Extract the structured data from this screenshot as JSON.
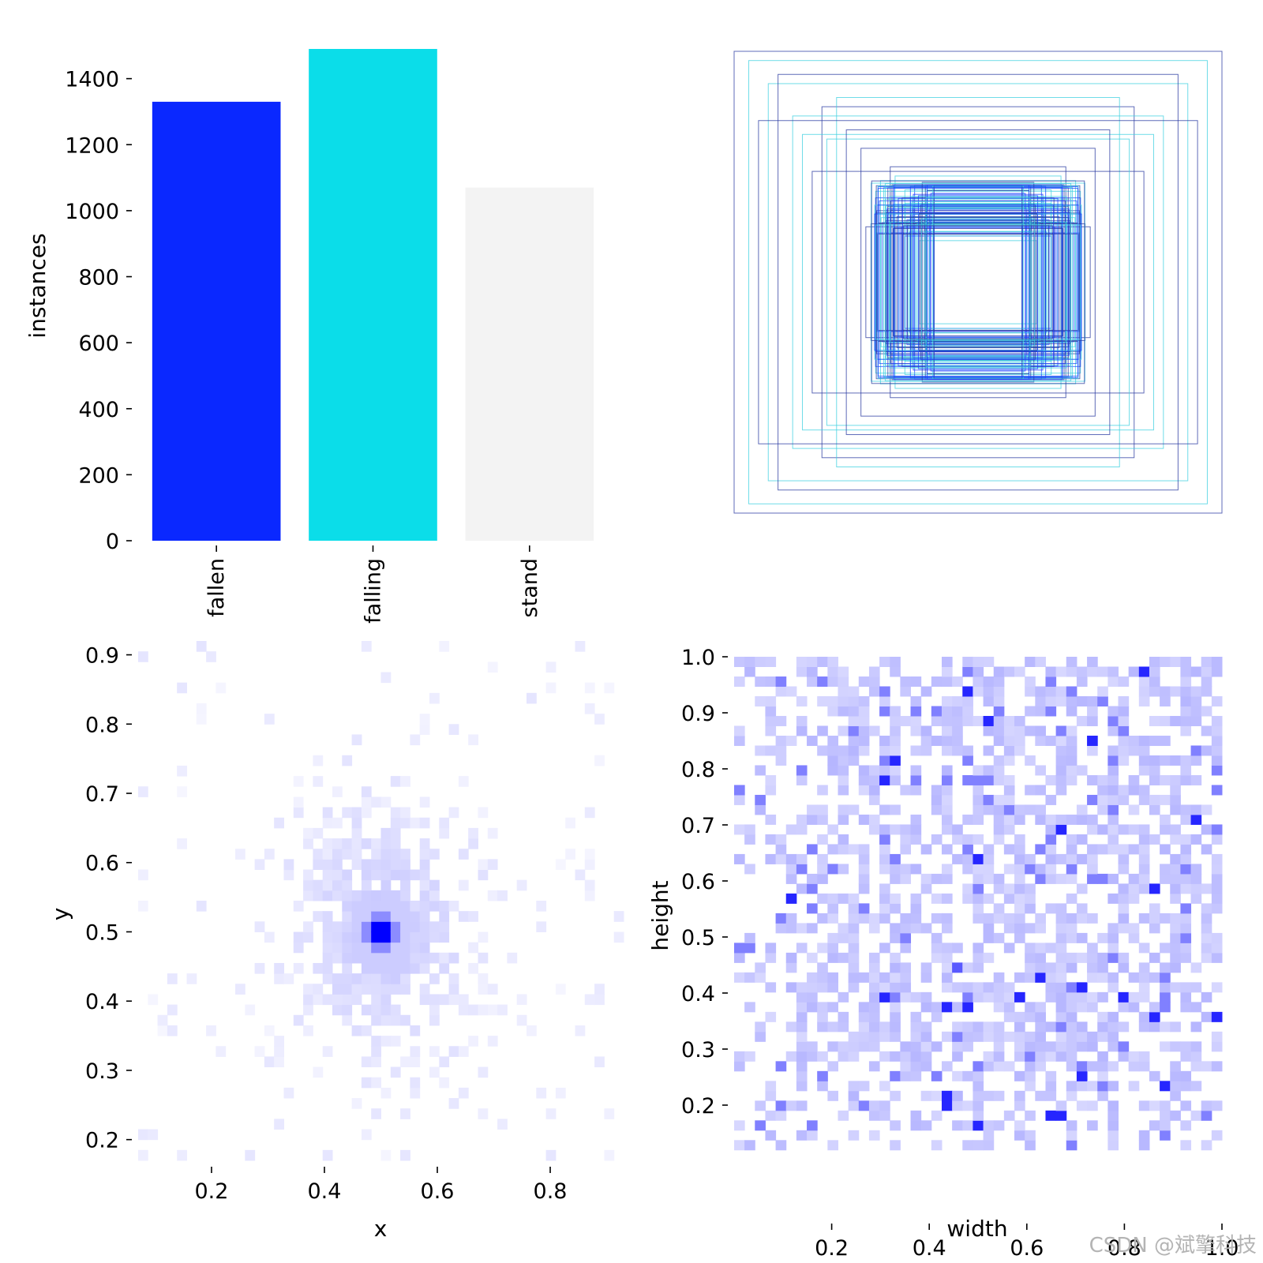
{
  "watermark": "CSDN @斌擎科技",
  "colors": {
    "fallen": "#0a28ff",
    "falling": "#0bdde9",
    "stand": "#f3f3f3",
    "heat": "#0000ff"
  },
  "chart_data": [
    {
      "type": "bar",
      "title": "",
      "ylabel": "instances",
      "categories": [
        "fallen",
        "falling",
        "stand"
      ],
      "values": [
        1330,
        1490,
        1070
      ],
      "ylim": [
        0,
        1490
      ],
      "yticks": [
        0,
        200,
        400,
        600,
        800,
        1000,
        1200,
        1400
      ],
      "ytick_labels": [
        "0",
        "200",
        "400",
        "600",
        "800",
        "1000",
        "1200",
        "1400"
      ],
      "grid": false,
      "legend": "none"
    },
    {
      "type": "boxes",
      "title": "",
      "description_free": true,
      "rects": [
        [
          0.5,
          0.5,
          1.0,
          1.0
        ],
        [
          0.5,
          0.5,
          0.86,
          0.86
        ],
        [
          0.5,
          0.5,
          0.64,
          0.76
        ],
        [
          0.5,
          0.5,
          0.94,
          0.96
        ],
        [
          0.5,
          0.5,
          0.82,
          0.9
        ],
        [
          0.5,
          0.5,
          0.76,
          0.72
        ],
        [
          0.5,
          0.5,
          0.58,
          0.8
        ],
        [
          0.5,
          0.5,
          0.48,
          0.58
        ],
        [
          0.5,
          0.5,
          0.4,
          0.44
        ],
        [
          0.5,
          0.5,
          0.36,
          0.5
        ],
        [
          0.5,
          0.5,
          0.3,
          0.4
        ],
        [
          0.5,
          0.5,
          0.46,
          0.24
        ],
        [
          0.5,
          0.5,
          0.34,
          0.3
        ],
        [
          0.5,
          0.5,
          0.26,
          0.34
        ],
        [
          0.5,
          0.5,
          0.22,
          0.28
        ],
        [
          0.5,
          0.5,
          0.28,
          0.22
        ],
        [
          0.5,
          0.5,
          0.2,
          0.32
        ],
        [
          0.5,
          0.5,
          0.38,
          0.36
        ],
        [
          0.5,
          0.5,
          0.32,
          0.26
        ],
        [
          0.5,
          0.5,
          0.24,
          0.18
        ],
        [
          0.5,
          0.5,
          0.42,
          0.3
        ],
        [
          0.5,
          0.5,
          0.3,
          0.2
        ],
        [
          0.5,
          0.5,
          0.18,
          0.24
        ],
        [
          0.5,
          0.5,
          0.26,
          0.42
        ],
        [
          0.5,
          0.5,
          0.72,
          0.64
        ],
        [
          0.5,
          0.5,
          0.68,
          0.48
        ],
        [
          0.5,
          0.5,
          0.34,
          0.46
        ],
        [
          0.5,
          0.5,
          0.9,
          0.7
        ],
        [
          0.5,
          0.5,
          0.62,
          0.62
        ],
        [
          0.5,
          0.5,
          0.54,
          0.66
        ]
      ],
      "rect_colors": [
        "#2a3aa0",
        "#3fd0e0",
        "#2a3aa0",
        "#3fd0e0",
        "#2a3aa0",
        "#3fd0e0",
        "#3fd0e0",
        "#2a3aa0",
        "#3fd0e0",
        "#2a3aa0",
        "#3fd0e0",
        "#2a3aa0",
        "#1a40ff",
        "#3fd0e0",
        "#1a40ff",
        "#3fd0e0",
        "#1a40ff",
        "#3fd0e0",
        "#1a40ff",
        "#3fd0e0",
        "#2a3aa0",
        "#1a40ff",
        "#3fd0e0",
        "#1a40ff",
        "#3fd0e0",
        "#2a3aa0",
        "#3fd0e0",
        "#2a3aa0",
        "#3fd0e0",
        "#2a3aa0"
      ]
    },
    {
      "type": "heatmap",
      "title": "",
      "xlabel": "x",
      "ylabel": "y",
      "xlim": [
        0.07,
        0.93
      ],
      "ylim": [
        0.17,
        0.92
      ],
      "xticks": [
        0.2,
        0.4,
        0.6,
        0.8
      ],
      "xtick_labels": [
        "0.2",
        "0.4",
        "0.6",
        "0.8"
      ],
      "yticks": [
        0.2,
        0.3,
        0.4,
        0.5,
        0.6,
        0.7,
        0.8,
        0.9
      ],
      "ytick_labels": [
        "0.2",
        "0.3",
        "0.4",
        "0.5",
        "0.6",
        "0.7",
        "0.8",
        "0.9"
      ],
      "bins": [
        50,
        50
      ],
      "peak": {
        "x": 0.5,
        "y": 0.5,
        "intensity": 1.0
      },
      "spread": {
        "x": 0.14,
        "y": 0.15
      },
      "base_intensity": 0.07,
      "seed": 11
    },
    {
      "type": "heatmap",
      "title": "",
      "xlabel": "width",
      "ylabel": "height",
      "xlim": [
        0.0,
        1.0
      ],
      "ylim": [
        0.0,
        1.0
      ],
      "xticks": [
        0.2,
        0.4,
        0.6,
        0.8,
        1.0
      ],
      "xtick_labels": [
        "0.2",
        "0.4",
        "0.6",
        "0.8",
        "1.0"
      ],
      "yticks": [
        0.2,
        0.3,
        0.4,
        0.5,
        0.6,
        0.7,
        0.8,
        0.9,
        1.0
      ],
      "ytick_labels": [
        "0.2",
        "0.3",
        "0.4",
        "0.5",
        "0.6",
        "0.7",
        "0.8",
        "0.9",
        "1.0"
      ],
      "bins": [
        47,
        50
      ],
      "occupied_x_min": 0.0,
      "occupied_y_min": 0.12,
      "peak": {
        "x": 0.44,
        "y": 0.44,
        "intensity": 0.9
      },
      "base_intensity": 0.22,
      "seed": 23
    }
  ]
}
